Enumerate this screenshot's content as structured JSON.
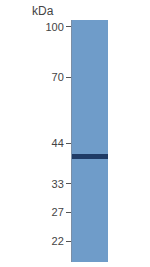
{
  "chart_data": {
    "type": "blot",
    "ylabel": "kDa",
    "log": "y",
    "ylim": [
      19,
      105
    ],
    "yticks": [
      100,
      70,
      44,
      33,
      27,
      22
    ],
    "values": [
      40
    ],
    "color": "#1f3b66"
  }
}
